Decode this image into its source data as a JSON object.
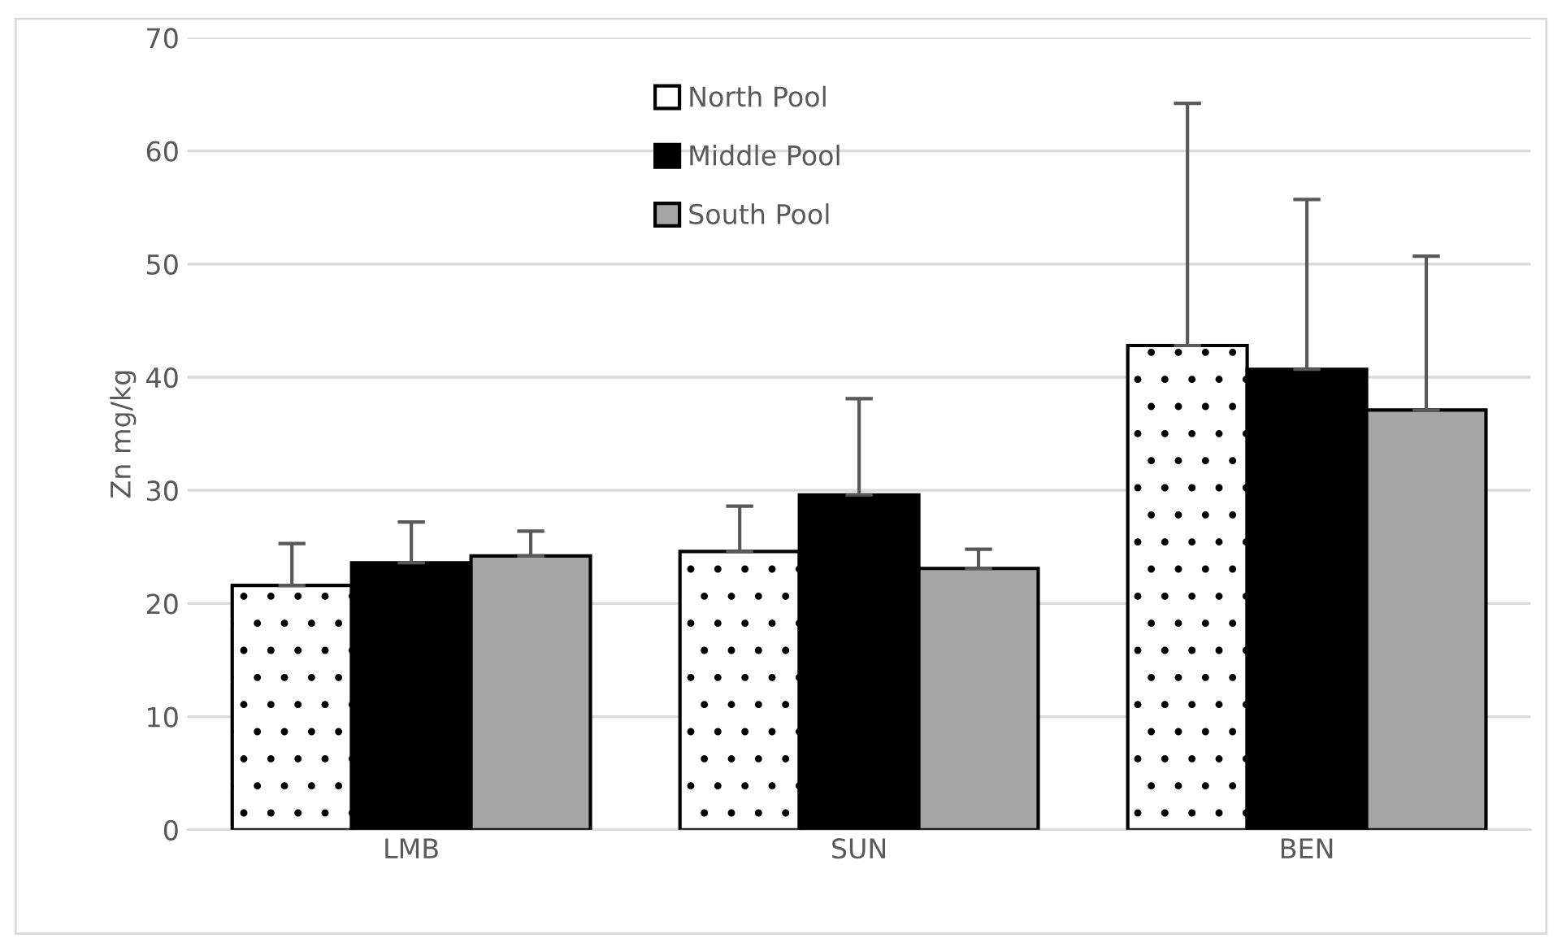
{
  "chart_data": {
    "type": "bar",
    "ylabel": "Zn mg/kg",
    "categories": [
      "LMB",
      "SUN",
      "BEN"
    ],
    "series": [
      {
        "name": "North Pool",
        "color": "#ffffff",
        "values": [
          21.6,
          24.6,
          42.8
        ],
        "errors": [
          [
            21.6,
            25.3
          ],
          [
            24.6,
            28.6
          ],
          [
            42.8,
            64.2
          ]
        ]
      },
      {
        "name": "Middle Pool",
        "color": "#000000",
        "values": [
          23.6,
          29.6,
          40.7
        ],
        "errors": [
          [
            23.6,
            27.2
          ],
          [
            29.6,
            38.1
          ],
          [
            40.7,
            55.7
          ]
        ]
      },
      {
        "name": "South Pool",
        "color": "#a6a6a6",
        "values": [
          24.2,
          23.1,
          37.1
        ],
        "errors": [
          [
            24.2,
            26.4
          ],
          [
            23.1,
            24.8
          ],
          [
            37.1,
            50.7
          ]
        ]
      }
    ],
    "ylim": [
      0,
      70
    ],
    "yticks": [
      0,
      10,
      20,
      30,
      40,
      50,
      60,
      70
    ],
    "grid": "y",
    "legend": "top"
  }
}
